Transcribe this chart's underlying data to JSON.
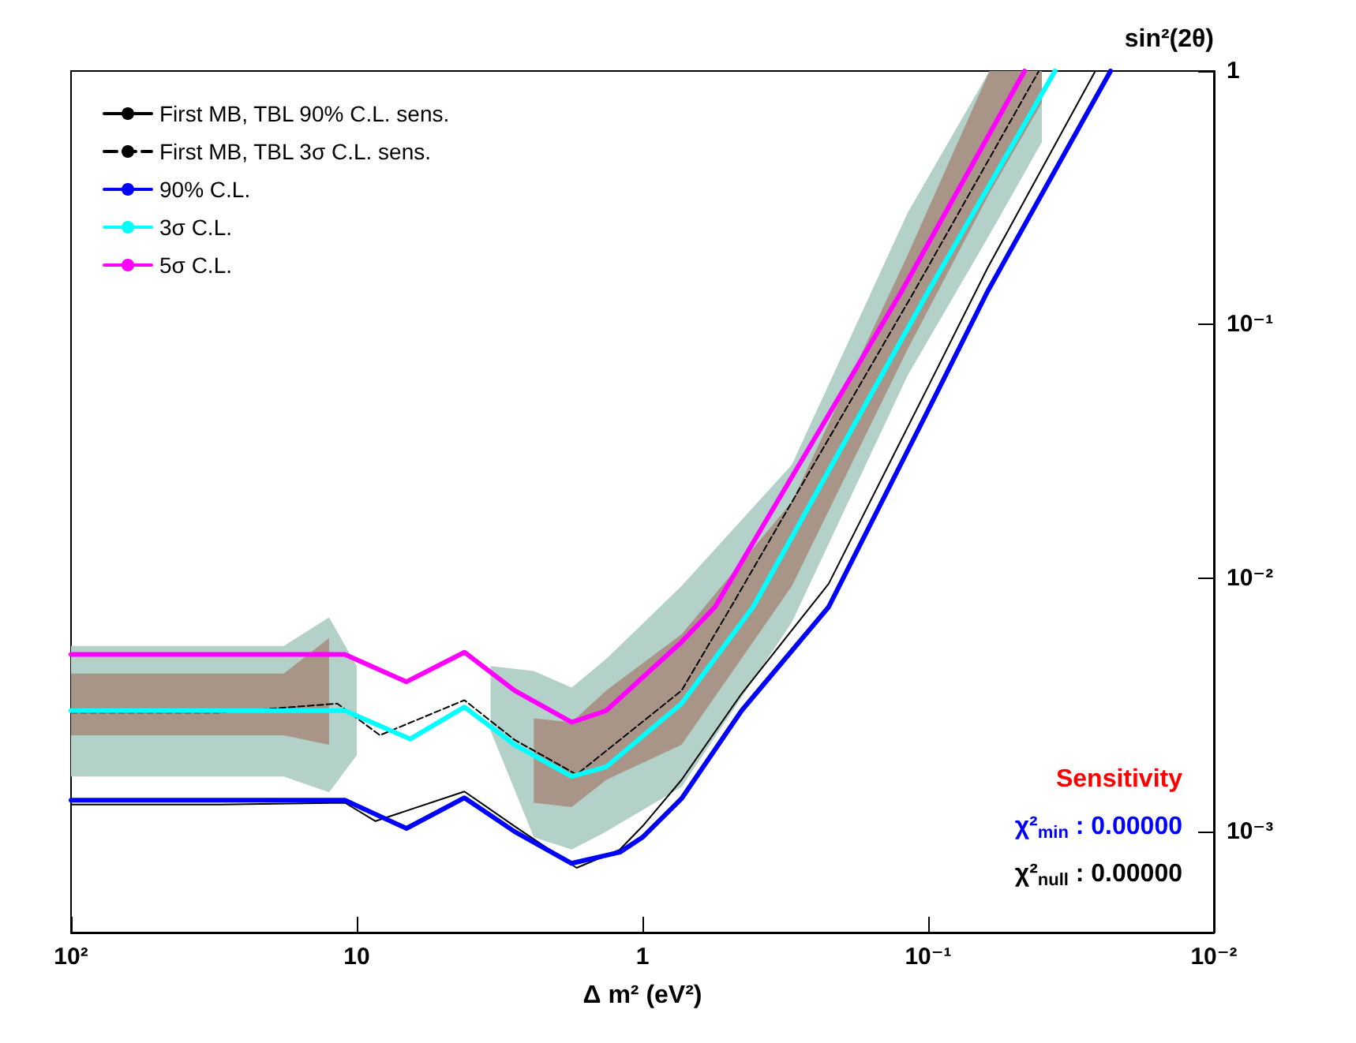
{
  "chart_data": {
    "type": "line",
    "xlabel": "Δ m² (eV²)",
    "ylabel": "sin²(2θ)",
    "log": "xy",
    "grid": false,
    "marker": "none",
    "legend": "top left",
    "xlim": [
      100,
      0.01
    ],
    "xticks": [
      {
        "value": 100,
        "label": "10²"
      },
      10,
      1,
      {
        "value": 0.1,
        "label": "10⁻¹"
      },
      {
        "value": 0.01,
        "label": "10⁻²"
      }
    ],
    "ylim": [
      0.0004,
      1
    ],
    "yticks": [
      {
        "value": 0.001,
        "label": "10⁻³"
      },
      {
        "value": 0.01,
        "label": "10⁻²"
      },
      {
        "value": 0.1,
        "label": "10⁻¹"
      },
      1
    ],
    "annotations": [
      "Sensitivity",
      "χ²$_{min}$ : 0.00000",
      "χ²$_{null}$ : 0.00000"
    ],
    "series": [
      {
        "color": "#b3d1c9",
        "x": [
          100,
          30,
          18,
          12.5,
          10,
          6,
          3.4,
          2.4,
          1.77,
          1.34,
          0.73,
          0.3,
          0.118,
          0.061,
          0.04
        ],
        "values": [
          null,
          null,
          null,
          null,
          null,
          null,
          null,
          null,
          null,
          null,
          null,
          null,
          null,
          null,
          null
        ],
        "lower": [
          0.00165,
          0.00165,
          0.00165,
          0.00143,
          0.002,
          null,
          0.0025,
          0.00095,
          0.00085,
          0.001,
          0.0015,
          0.0067,
          0.063,
          0.226,
          0.525
        ],
        "upper": [
          0.0054,
          0.0054,
          0.0054,
          0.007,
          0.0045,
          null,
          0.0045,
          0.0043,
          0.0037,
          0.0048,
          0.0093,
          0.028,
          0.276,
          1,
          1
        ]
      },
      {
        "color": "#a89588",
        "x": [
          100,
          30,
          18,
          12.5,
          10,
          6,
          3.4,
          2.4,
          1.77,
          1.34,
          0.73,
          0.3,
          0.118,
          0.061,
          0.04
        ],
        "values": [
          null,
          null,
          null,
          null,
          null,
          null,
          null,
          null,
          null,
          null,
          null,
          null,
          null,
          null,
          null
        ],
        "lower": [
          0.0024,
          0.0024,
          0.0024,
          0.0022,
          null,
          null,
          null,
          0.0013,
          0.00125,
          0.0016,
          0.0022,
          0.0093,
          0.08,
          0.33,
          0.75
        ],
        "upper": [
          0.0042,
          0.0042,
          0.0042,
          0.0058,
          null,
          null,
          null,
          0.0028,
          0.0027,
          0.0036,
          0.006,
          0.02,
          0.188,
          1,
          1
        ]
      },
      {
        "name": "First MB, TBL 90% C.L. sens.",
        "color": "#000000",
        "line_style": "solid",
        "x": [
          100,
          30,
          11,
          8.6,
          4.2,
          2.8,
          1.7,
          1.2,
          1.0,
          0.73,
          0.45,
          0.223,
          0.1,
          0.062,
          0.026
        ],
        "values": [
          0.00128,
          0.00128,
          0.0013,
          0.0011,
          0.00144,
          0.00105,
          0.00072,
          0.00085,
          0.00105,
          0.0016,
          0.0035,
          0.0095,
          0.057,
          0.167,
          1
        ]
      },
      {
        "name": "First MB, TBL 3σ C.L. sens.",
        "color": "#000000",
        "line_style": "dashed",
        "x": [
          100,
          30,
          11.7,
          8.3,
          4.2,
          2.8,
          1.7,
          0.73,
          0.49,
          0.112,
          0.041
        ],
        "values": [
          0.00295,
          0.00295,
          0.0032,
          0.0024,
          0.0033,
          0.0023,
          0.00168,
          0.0036,
          0.0077,
          0.135,
          1
        ]
      },
      {
        "name": "90% C.L.",
        "color": "#0000ff",
        "line_style": "solid",
        "x": [
          100,
          30,
          11,
          6.7,
          4.2,
          2.8,
          1.77,
          1.2,
          1.0,
          0.73,
          0.45,
          0.223,
          0.1,
          0.062,
          0.023
        ],
        "values": [
          0.00133,
          0.00133,
          0.00133,
          0.00103,
          0.00136,
          0.001,
          0.00075,
          0.00083,
          0.00095,
          0.00135,
          0.003,
          0.0077,
          0.046,
          0.135,
          1
        ]
      },
      {
        "name": "3σ C.L.",
        "color": "#00ffff",
        "line_style": "solid",
        "x": [
          100,
          30,
          11,
          6.5,
          4.2,
          2.8,
          1.77,
          1.34,
          0.73,
          0.41,
          0.1,
          0.036
        ],
        "values": [
          0.003,
          0.003,
          0.003,
          0.00232,
          0.0031,
          0.0022,
          0.00165,
          0.0018,
          0.0032,
          0.0077,
          0.135,
          1
        ]
      },
      {
        "name": "5σ C.L.",
        "color": "#ff00ff",
        "line_style": "solid",
        "x": [
          100,
          30,
          11,
          6.7,
          4.2,
          2.8,
          1.77,
          1.34,
          0.73,
          0.557,
          0.124,
          0.046
        ],
        "values": [
          0.005,
          0.005,
          0.005,
          0.0039,
          0.0051,
          0.0036,
          0.0027,
          0.003,
          0.0056,
          0.0077,
          0.135,
          1
        ]
      }
    ]
  }
}
